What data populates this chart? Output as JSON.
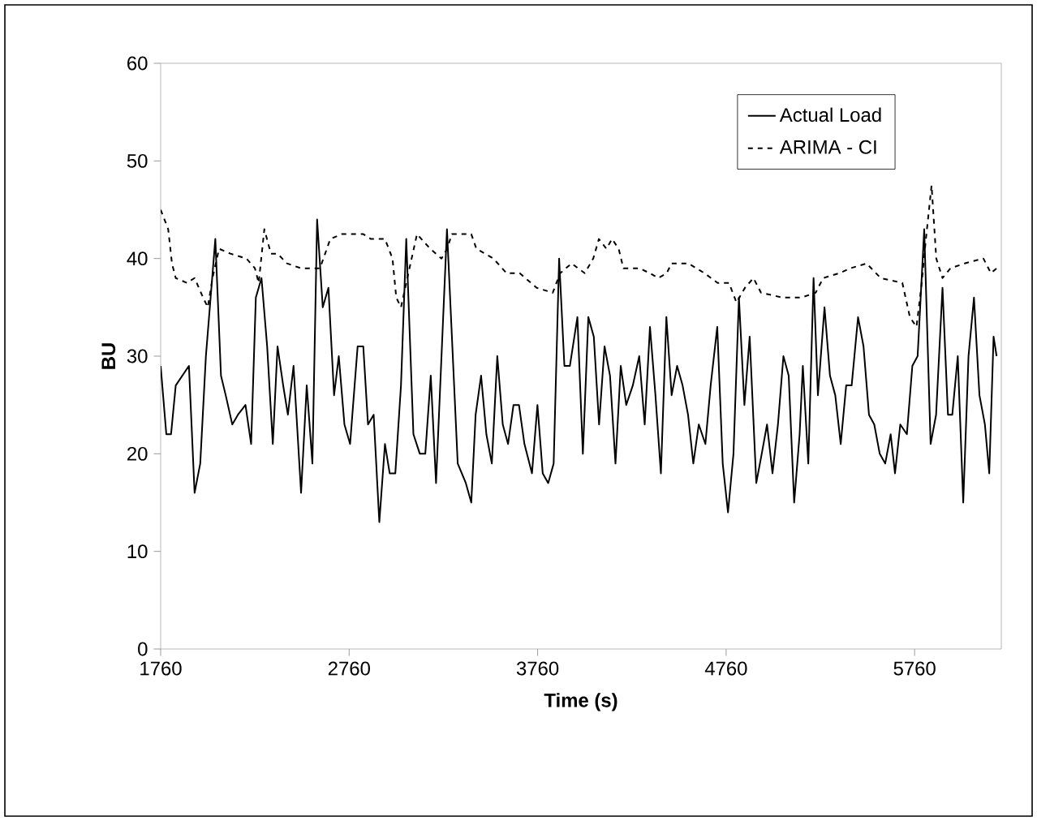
{
  "chart_data": {
    "type": "line",
    "xlabel": "Time (s)",
    "ylabel": "BU",
    "xlim": [
      1760,
      6220
    ],
    "ylim": [
      0,
      60
    ],
    "xticks": [
      1760,
      2760,
      3760,
      4760,
      5760
    ],
    "yticks": [
      0,
      10,
      20,
      30,
      40,
      50,
      60
    ],
    "legend": "top right",
    "marker": "none",
    "series": [
      {
        "name": "Actual Load",
        "color": "#000000",
        "line_style": "solid",
        "x": [
          1760,
          1790,
          1815,
          1840,
          1910,
          1940,
          1970,
          2000,
          2050,
          2080,
          2105,
          2140,
          2170,
          2210,
          2240,
          2265,
          2295,
          2325,
          2355,
          2380,
          2410,
          2435,
          2465,
          2505,
          2535,
          2565,
          2590,
          2620,
          2650,
          2680,
          2705,
          2735,
          2765,
          2805,
          2835,
          2860,
          2890,
          2920,
          2950,
          2975,
          3005,
          3035,
          3063,
          3101,
          3135,
          3164,
          3193,
          3221,
          3250,
          3279,
          3336,
          3379,
          3408,
          3431,
          3460,
          3488,
          3517,
          3546,
          3575,
          3603,
          3632,
          3661,
          3690,
          3730,
          3759,
          3787,
          3816,
          3845,
          3874,
          3902,
          3931,
          3971,
          4000,
          4029,
          4058,
          4086,
          4115,
          4144,
          4173,
          4201,
          4230,
          4265,
          4299,
          4328,
          4356,
          4385,
          4414,
          4443,
          4471,
          4500,
          4529,
          4558,
          4586,
          4615,
          4650,
          4678,
          4713,
          4742,
          4770,
          4799,
          4828,
          4857,
          4885,
          4920,
          4949,
          4977,
          5006,
          5035,
          5064,
          5092,
          5121,
          5150,
          5167,
          5196,
          5224,
          5247,
          5282,
          5311,
          5339,
          5368,
          5397,
          5426,
          5460,
          5489,
          5518,
          5546,
          5575,
          5604,
          5633,
          5656,
          5684,
          5719,
          5748,
          5776,
          5811,
          5845,
          5874,
          5908,
          5937,
          5960,
          5989,
          6018,
          6046,
          6075,
          6104,
          6133,
          6156,
          6179,
          6195
        ],
        "values": [
          29,
          22,
          22,
          27,
          29,
          16,
          19,
          30,
          42,
          28,
          26,
          23,
          24,
          25,
          21,
          36,
          38,
          31,
          21,
          31,
          27,
          24,
          29,
          16,
          27,
          19,
          44,
          35,
          37,
          26,
          30,
          23,
          21,
          31,
          31,
          23,
          24,
          13,
          21,
          18,
          18,
          27,
          42,
          22,
          20,
          20,
          28,
          17,
          30,
          43,
          19,
          17,
          15,
          24,
          28,
          22,
          19,
          30,
          23,
          21,
          25,
          25,
          21,
          18,
          25,
          18,
          17,
          19,
          40,
          29,
          29,
          34,
          20,
          34,
          32,
          23,
          31,
          28,
          19,
          29,
          25,
          27,
          30,
          23,
          33,
          26,
          18,
          34,
          26,
          29,
          27,
          24,
          19,
          23,
          21,
          27,
          33,
          19,
          14,
          20,
          36,
          25,
          32,
          17,
          20,
          23,
          18,
          23,
          30,
          28,
          15,
          22,
          29,
          19,
          38,
          26,
          35,
          28,
          26,
          21,
          27,
          27,
          34,
          31,
          24,
          23,
          20,
          19,
          22,
          18,
          23,
          22,
          29,
          30,
          43,
          21,
          24,
          37,
          24,
          24,
          30,
          15,
          30,
          36,
          26,
          23,
          18,
          32,
          30
        ]
      },
      {
        "name": "ARIMA - CI",
        "color": "#000000",
        "line_style": "dashed",
        "x": [
          1760,
          1800,
          1820,
          1840,
          1900,
          1940,
          1985,
          2010,
          2035,
          2070,
          2130,
          2215,
          2260,
          2280,
          2310,
          2345,
          2380,
          2430,
          2505,
          2605,
          2660,
          2720,
          2835,
          2875,
          2950,
          2990,
          3010,
          3035,
          3080,
          3120,
          3190,
          3250,
          3280,
          3305,
          3408,
          3435,
          3525,
          3595,
          3665,
          3755,
          3840,
          3880,
          3940,
          4010,
          4055,
          4085,
          4125,
          4155,
          4190,
          4215,
          4300,
          4355,
          4400,
          4445,
          4470,
          4560,
          4645,
          4715,
          4775,
          4815,
          4860,
          4905,
          4945,
          5060,
          5160,
          5235,
          5275,
          5360,
          5420,
          5505,
          5580,
          5695,
          5735,
          5770,
          5795,
          5820,
          5850,
          5875,
          5908,
          5950,
          6025,
          6125,
          6165,
          6195
        ],
        "values": [
          45,
          43,
          39.5,
          38,
          37.5,
          38,
          36,
          35,
          38,
          41,
          40.5,
          40,
          39,
          37.5,
          43,
          40.5,
          40.5,
          39.5,
          39,
          39,
          42,
          42.5,
          42.5,
          42,
          42,
          40,
          36,
          35,
          39,
          42.5,
          41,
          40,
          41,
          42.5,
          42.5,
          41,
          40,
          38.5,
          38.5,
          37,
          36.5,
          38.5,
          39.5,
          38.5,
          40,
          42,
          41,
          42,
          41,
          39,
          39,
          38.5,
          38,
          38.5,
          39.5,
          39.5,
          38.5,
          37.5,
          37.5,
          35.5,
          37,
          38,
          36.5,
          36,
          36,
          36.5,
          38,
          38.5,
          39,
          39.5,
          38,
          37.5,
          34,
          33,
          37,
          42,
          47.5,
          40,
          38,
          39,
          39.5,
          40,
          38.5,
          39
        ]
      }
    ]
  }
}
